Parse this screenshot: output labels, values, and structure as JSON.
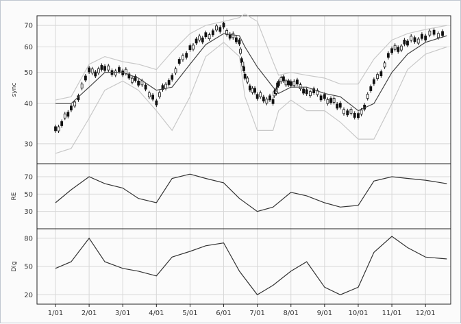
{
  "chart_data": [
    {
      "type": "line",
      "panel": "price",
      "ylabel": "sync",
      "ylim": [
        26,
        75
      ],
      "y_scale": "log",
      "yticks": [
        30,
        40,
        50,
        60,
        70
      ],
      "grid": true,
      "x_ticks": [
        "1/01",
        "2/01",
        "3/01",
        "4/01",
        "5/01",
        "6/01",
        "7/01",
        "8/01",
        "9/01",
        "10/01",
        "11/01",
        "12/01"
      ],
      "x": [
        "1/01",
        "1/15",
        "2/01",
        "2/15",
        "3/01",
        "3/15",
        "4/01",
        "4/15",
        "5/01",
        "5/15",
        "6/01",
        "6/15",
        "6/20",
        "7/01",
        "7/15",
        "7/20",
        "8/01",
        "8/15",
        "9/01",
        "9/15",
        "10/01",
        "10/15",
        "11/01",
        "11/15",
        "12/01",
        "12/20"
      ],
      "series": [
        {
          "values": [
            33,
            38,
            50,
            51,
            50,
            47,
            41,
            49,
            60,
            65,
            69,
            61,
            48,
            42,
            41,
            47,
            47,
            44,
            42,
            39,
            36,
            46,
            58,
            62,
            65,
            67
          ],
          "color": "#111111",
          "style": "candles"
        },
        {
          "values": [
            40,
            40,
            45,
            50,
            50,
            48,
            44,
            45,
            53,
            61,
            66,
            65,
            60,
            52,
            45,
            43,
            45,
            45,
            43,
            42,
            38,
            40,
            50,
            57,
            62,
            65
          ],
          "color": "#444444",
          "style": "line"
        },
        {
          "values": [
            41,
            42,
            53,
            56,
            54,
            53,
            51,
            58,
            66,
            70,
            72,
            74,
            76,
            72,
            54,
            49,
            50,
            49,
            48,
            46,
            46,
            55,
            63,
            66,
            68,
            70
          ],
          "color": "#c8c8c8",
          "style": "line"
        },
        {
          "values": [
            28,
            29,
            36,
            44,
            47,
            44,
            38,
            33,
            42,
            56,
            62,
            56,
            42,
            33,
            33,
            38,
            41,
            38,
            38,
            35,
            31,
            31,
            40,
            51,
            57,
            60
          ],
          "color": "#c8c8c8",
          "style": "line"
        }
      ]
    },
    {
      "type": "line",
      "panel": "middle",
      "ylabel": "RE",
      "ylim": [
        10,
        85
      ],
      "yticks": [
        30,
        50,
        70
      ],
      "grid": true,
      "x": [
        "1/01",
        "1/15",
        "2/01",
        "2/15",
        "3/01",
        "3/15",
        "4/01",
        "4/15",
        "5/01",
        "5/15",
        "6/01",
        "6/15",
        "7/01",
        "7/15",
        "8/01",
        "8/15",
        "9/01",
        "9/15",
        "10/01",
        "10/15",
        "11/01",
        "11/15",
        "12/01",
        "12/20"
      ],
      "series": [
        {
          "values": [
            40,
            55,
            70,
            62,
            57,
            45,
            40,
            68,
            73,
            68,
            63,
            45,
            30,
            35,
            52,
            48,
            40,
            35,
            37,
            65,
            70,
            68,
            66,
            62
          ],
          "color": "#333333"
        }
      ]
    },
    {
      "type": "line",
      "panel": "bottom",
      "ylabel": "Dig",
      "ylim": [
        10,
        90
      ],
      "yticks": [
        20,
        50,
        80
      ],
      "grid": true,
      "x": [
        "1/01",
        "1/15",
        "2/01",
        "2/15",
        "3/01",
        "3/15",
        "4/01",
        "4/15",
        "5/01",
        "5/15",
        "6/01",
        "6/15",
        "7/01",
        "7/15",
        "8/01",
        "8/15",
        "9/01",
        "9/15",
        "10/01",
        "10/15",
        "11/01",
        "11/15",
        "12/01",
        "12/20"
      ],
      "series": [
        {
          "values": [
            48,
            55,
            80,
            55,
            48,
            45,
            40,
            60,
            66,
            72,
            75,
            45,
            20,
            30,
            45,
            55,
            28,
            20,
            28,
            65,
            82,
            70,
            60,
            58
          ],
          "color": "#333333"
        }
      ]
    }
  ],
  "icons": [
    "none"
  ]
}
